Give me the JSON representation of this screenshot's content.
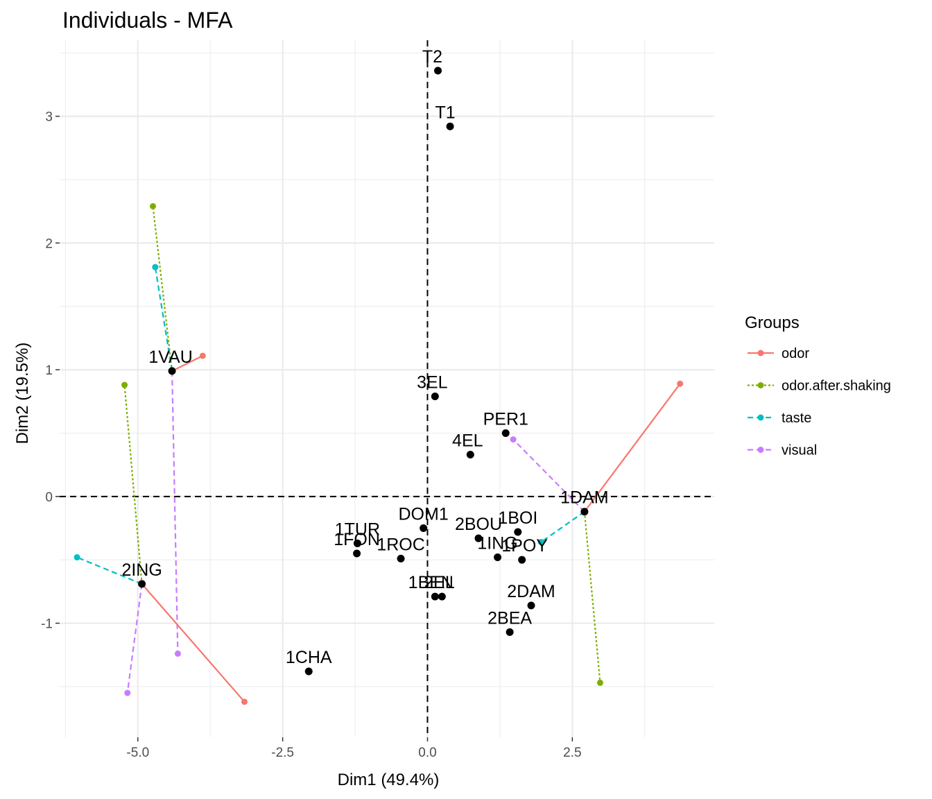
{
  "chart_data": {
    "type": "scatter",
    "title": "Individuals - MFA",
    "xlabel": "Dim1 (49.4%)",
    "ylabel": "Dim2 (19.5%)",
    "xlim": [
      -6.35,
      4.95
    ],
    "ylim": [
      -1.9,
      3.6
    ],
    "x_ticks": [
      {
        "value": -5.0,
        "label": "-5.0"
      },
      {
        "value": -2.5,
        "label": "-2.5"
      },
      {
        "value": 0.0,
        "label": "0.0"
      },
      {
        "value": 2.5,
        "label": "2.5"
      }
    ],
    "y_ticks": [
      {
        "value": -1,
        "label": "-1"
      },
      {
        "value": 0,
        "label": "0"
      },
      {
        "value": 1,
        "label": "1"
      },
      {
        "value": 2,
        "label": "2"
      },
      {
        "value": 3,
        "label": "3"
      }
    ],
    "grid": true,
    "reference_lines": {
      "x": 0,
      "y": 0,
      "style": "dashed"
    },
    "individuals": [
      {
        "label": "T2",
        "x": 0.18,
        "y": 3.36
      },
      {
        "label": "T1",
        "x": 0.39,
        "y": 2.92
      },
      {
        "label": "1VAU",
        "x": -4.41,
        "y": 0.99
      },
      {
        "label": "3EL",
        "x": 0.13,
        "y": 0.79
      },
      {
        "label": "PER1",
        "x": 1.35,
        "y": 0.5
      },
      {
        "label": "4EL",
        "x": 0.74,
        "y": 0.33
      },
      {
        "label": "1DAM",
        "x": 2.71,
        "y": -0.12
      },
      {
        "label": "DOM1",
        "x": -0.07,
        "y": -0.25
      },
      {
        "label": "1BOI",
        "x": 1.56,
        "y": -0.28
      },
      {
        "label": "2BOU",
        "x": 0.88,
        "y": -0.33
      },
      {
        "label": "1TUR",
        "x": -1.21,
        "y": -0.37
      },
      {
        "label": "1FON",
        "x": -1.22,
        "y": -0.45
      },
      {
        "label": "1ROC",
        "x": -0.46,
        "y": -0.49
      },
      {
        "label": "1ING",
        "x": 1.21,
        "y": -0.48
      },
      {
        "label": "1POY",
        "x": 1.63,
        "y": -0.5
      },
      {
        "label": "2ING",
        "x": -4.93,
        "y": -0.69
      },
      {
        "label": "1BEN",
        "x": 0.13,
        "y": -0.79
      },
      {
        "label": "2EL",
        "x": 0.25,
        "y": -0.79
      },
      {
        "label": "2DAM",
        "x": 1.79,
        "y": -0.86
      },
      {
        "label": "2BEA",
        "x": 1.42,
        "y": -1.07
      },
      {
        "label": "1CHA",
        "x": -2.05,
        "y": -1.38
      }
    ],
    "legend": {
      "title": "Groups",
      "placement": "right",
      "entries": [
        {
          "name": "odor",
          "color": "#F8766D",
          "dash": "solid"
        },
        {
          "name": "odor.after.shaking",
          "color": "#7CAE00",
          "dash": "dotted"
        },
        {
          "name": "taste",
          "color": "#00BFC4",
          "dash": "dashed"
        },
        {
          "name": "visual",
          "color": "#C77CFF",
          "dash": "dashed"
        }
      ]
    },
    "partial_points": [
      {
        "individual": "1VAU",
        "group": "odor",
        "x": -3.88,
        "y": 1.11
      },
      {
        "individual": "1VAU",
        "group": "odor.after.shaking",
        "x": -4.74,
        "y": 2.29
      },
      {
        "individual": "1VAU",
        "group": "taste",
        "x": -4.7,
        "y": 1.81
      },
      {
        "individual": "1VAU",
        "group": "visual",
        "x": -4.31,
        "y": -1.24
      },
      {
        "individual": "2ING",
        "group": "odor",
        "x": -3.16,
        "y": -1.62
      },
      {
        "individual": "2ING",
        "group": "odor.after.shaking",
        "x": -5.23,
        "y": 0.88
      },
      {
        "individual": "2ING",
        "group": "taste",
        "x": -6.05,
        "y": -0.48
      },
      {
        "individual": "2ING",
        "group": "visual",
        "x": -5.18,
        "y": -1.55
      },
      {
        "individual": "1DAM",
        "group": "odor",
        "x": 4.36,
        "y": 0.89
      },
      {
        "individual": "1DAM",
        "group": "odor.after.shaking",
        "x": 2.98,
        "y": -1.47
      },
      {
        "individual": "1DAM",
        "group": "taste",
        "x": 1.96,
        "y": -0.36
      },
      {
        "individual": "1DAM",
        "group": "visual",
        "x": 1.48,
        "y": 0.45
      }
    ]
  }
}
